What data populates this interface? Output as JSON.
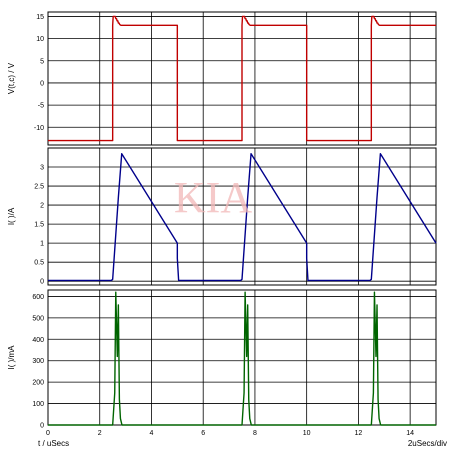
{
  "chart_data": [
    {
      "type": "line",
      "ylabel": "V(t,c) / V",
      "xlim": [
        0,
        15
      ],
      "ylim": [
        -14,
        16
      ],
      "yticks": [
        -10,
        -5,
        0,
        5,
        10,
        15
      ],
      "grid": true,
      "color": "#c00000",
      "series": [
        {
          "x": [
            0,
            2.5,
            2.5,
            2.52,
            2.6,
            2.62,
            2.65,
            2.67,
            2.7,
            2.72,
            2.75,
            2.77,
            2.82,
            3.0,
            5.0,
            5.0,
            7.5,
            7.5,
            7.52,
            7.6,
            7.62,
            7.65,
            7.67,
            7.7,
            7.72,
            7.75,
            7.77,
            7.82,
            8.0,
            10.0,
            10.0,
            12.5,
            12.5,
            12.52,
            12.6,
            12.62,
            12.65,
            12.67,
            12.7,
            12.72,
            12.75,
            12.77,
            12.82,
            13.0,
            15.0
          ],
          "y": [
            -13,
            -13,
            13,
            15,
            15,
            14.5,
            14.5,
            14,
            14,
            13.5,
            13.5,
            13.2,
            13,
            13,
            13,
            -13,
            -13,
            13,
            15,
            15,
            14.5,
            14.5,
            14,
            14,
            13.5,
            13.5,
            13.2,
            13,
            13,
            13,
            -13,
            -13,
            13,
            15,
            15,
            14.5,
            14.5,
            14,
            14,
            13.5,
            13.5,
            13.2,
            13,
            13,
            13
          ]
        }
      ]
    },
    {
      "type": "line",
      "ylabel": "I( )/A",
      "xlim": [
        0,
        15
      ],
      "ylim": [
        -0.1,
        3.5
      ],
      "yticks": [
        0,
        0.5,
        1,
        1.5,
        2,
        2.5,
        3
      ],
      "grid": true,
      "color": "#00008b",
      "series": [
        {
          "x": [
            0,
            2.45,
            2.5,
            2.72,
            2.85,
            5.0,
            5.0,
            5.05,
            7.45,
            7.5,
            7.72,
            7.85,
            10.0,
            10.0,
            10.05,
            12.45,
            12.5,
            12.72,
            12.85,
            15.0
          ],
          "y": [
            0.02,
            0.02,
            0.05,
            2.2,
            3.35,
            1.0,
            0.6,
            0.02,
            0.02,
            0.05,
            2.2,
            3.35,
            1.0,
            0.6,
            0.02,
            0.02,
            0.05,
            2.2,
            3.35,
            1.0
          ]
        }
      ]
    },
    {
      "type": "line",
      "ylabel": "I( )/mA",
      "xlim": [
        0,
        15
      ],
      "ylim": [
        0,
        630
      ],
      "yticks": [
        0,
        100,
        200,
        300,
        400,
        500,
        600
      ],
      "xticks": [
        0,
        2,
        4,
        6,
        8,
        10,
        12,
        14
      ],
      "grid": true,
      "color": "#006400",
      "series": [
        {
          "x": [
            0,
            2.5,
            2.58,
            2.62,
            2.68,
            2.72,
            2.76,
            2.8,
            2.86,
            7.5,
            7.58,
            7.62,
            7.68,
            7.72,
            7.76,
            7.8,
            7.86,
            12.5,
            12.58,
            12.62,
            12.68,
            12.72,
            12.76,
            12.8,
            12.86,
            15.0
          ],
          "y": [
            0,
            0,
            150,
            620,
            320,
            560,
            120,
            30,
            0,
            0,
            150,
            620,
            320,
            560,
            120,
            30,
            0,
            0,
            150,
            620,
            320,
            560,
            120,
            30,
            0,
            0
          ]
        }
      ]
    }
  ],
  "footer": {
    "xaxis_label": "t / uSecs",
    "timebase": "2uSecs/div"
  },
  "watermark": "KIA"
}
